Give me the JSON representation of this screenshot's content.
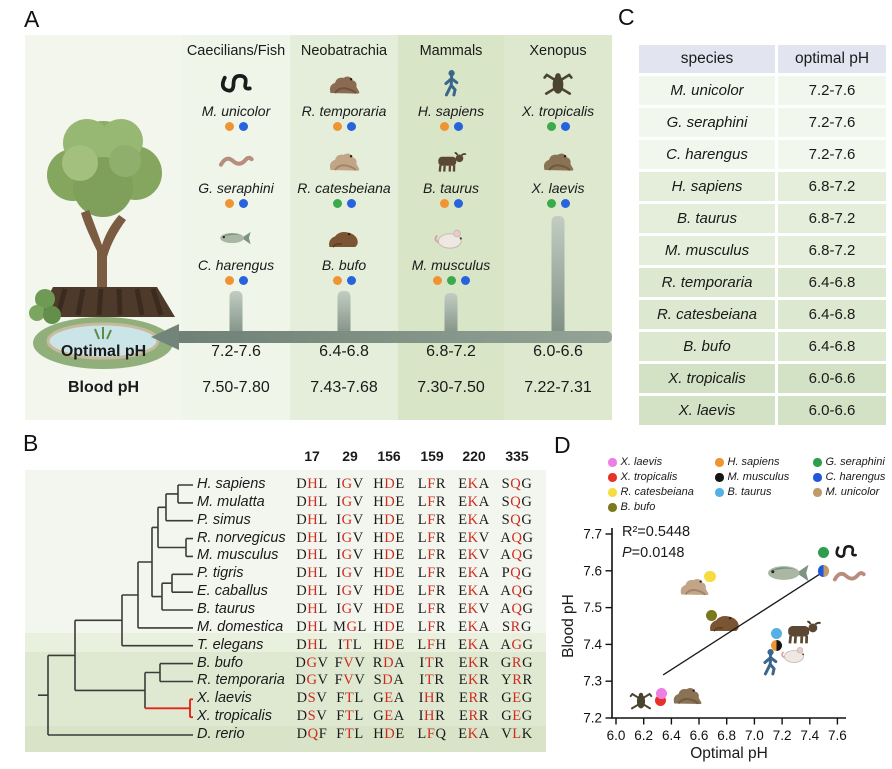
{
  "panels": {
    "a": "A",
    "b": "B",
    "c": "C",
    "d": "D"
  },
  "palette": {
    "orange": "#F09433",
    "green": "#3BAA4C",
    "blue": "#2763DD"
  },
  "panelA": {
    "row_labels": {
      "optimal": "Optimal pH",
      "blood": "Blood pH"
    },
    "columns": [
      {
        "name": "Caecilians/Fish",
        "bg": "#F0F5EA",
        "species": [
          {
            "name": "M. unicolor",
            "icon": "caecilian",
            "dots": [
              "orange",
              "blue"
            ]
          },
          {
            "name": "G. seraphini",
            "icon": "worm",
            "dots": [
              "orange",
              "blue"
            ]
          },
          {
            "name": "C. harengus",
            "icon": "fish",
            "dots": [
              "orange",
              "blue"
            ]
          }
        ],
        "optimal_ph": "7.2-7.6",
        "blood_ph": "7.50-7.80"
      },
      {
        "name": "Neobatrachia",
        "bg": "#E4EEDA",
        "species": [
          {
            "name": "R. temporaria",
            "icon": "frog-dark",
            "dots": [
              "orange",
              "blue"
            ]
          },
          {
            "name": "R. catesbeiana",
            "icon": "frog-light",
            "dots": [
              "green",
              "blue"
            ]
          },
          {
            "name": "B. bufo",
            "icon": "toad",
            "dots": [
              "orange",
              "blue"
            ]
          }
        ],
        "optimal_ph": "6.4-6.8",
        "blood_ph": "7.43-7.68"
      },
      {
        "name": "Mammals",
        "bg": "#D8E5C6",
        "species": [
          {
            "name": "H. sapiens",
            "icon": "human",
            "dots": [
              "orange",
              "blue"
            ]
          },
          {
            "name": "B. taurus",
            "icon": "cow",
            "dots": [
              "orange",
              "blue"
            ]
          },
          {
            "name": "M. musculus",
            "icon": "mouse",
            "dots": [
              "orange",
              "green",
              "blue"
            ]
          }
        ],
        "optimal_ph": "6.8-7.2",
        "blood_ph": "7.30-7.50"
      },
      {
        "name": "Xenopus",
        "bg": "#DDE8CF",
        "species": [
          {
            "name": "X. tropicalis",
            "icon": "xenopus-dark",
            "dots": [
              "green",
              "blue"
            ]
          },
          {
            "name": "X. laevis",
            "icon": "frog-xlaevis",
            "dots": [
              "green",
              "blue"
            ]
          }
        ],
        "optimal_ph": "6.0-6.6",
        "blood_ph": "7.22-7.31"
      }
    ]
  },
  "panelB": {
    "positions": [
      "17",
      "29",
      "156",
      "159",
      "220",
      "335"
    ],
    "rows": [
      {
        "species": "H. sapiens",
        "codons": [
          "DHL",
          "IGV",
          "HDE",
          "LFR",
          "EKA",
          "SQG"
        ]
      },
      {
        "species": "M. mulatta",
        "codons": [
          "DHL",
          "IGV",
          "HDE",
          "LFR",
          "EKA",
          "SQG"
        ]
      },
      {
        "species": "P. simus",
        "codons": [
          "DHL",
          "IGV",
          "HDE",
          "LFR",
          "EKA",
          "SQG"
        ]
      },
      {
        "species": "R. norvegicus",
        "codons": [
          "DHL",
          "IGV",
          "HDE",
          "LFR",
          "EKV",
          "AQG"
        ]
      },
      {
        "species": "M. musculus",
        "codons": [
          "DHL",
          "IGV",
          "HDE",
          "LFR",
          "EKV",
          "AQG"
        ]
      },
      {
        "species": "P. tigris",
        "codons": [
          "DHL",
          "IGV",
          "HDE",
          "LFR",
          "EKA",
          "PQG"
        ]
      },
      {
        "species": "E. caballus",
        "codons": [
          "DHL",
          "IGV",
          "HDE",
          "LFR",
          "EKA",
          "AQG"
        ]
      },
      {
        "species": "B. taurus",
        "codons": [
          "DHL",
          "IGV",
          "HDE",
          "LFR",
          "EKV",
          "AQG"
        ]
      },
      {
        "species": "M. domestica",
        "codons": [
          "DHL",
          "MGL",
          "HDE",
          "LFR",
          "EKA",
          "SRG"
        ]
      },
      {
        "species": "T. elegans",
        "codons": [
          "DHL",
          "ITL",
          "HDE",
          "LFH",
          "EKA",
          "AGG"
        ]
      },
      {
        "species": "B. bufo",
        "codons": [
          "DGV",
          "FVV",
          "RDA",
          "ITR",
          "EKR",
          "GRG"
        ]
      },
      {
        "species": "R. temporaria",
        "codons": [
          "DGV",
          "FVV",
          "SDA",
          "ITR",
          "EKR",
          "YRR"
        ]
      },
      {
        "species": "X. laevis",
        "codons": [
          "DSV",
          "FTL",
          "GEA",
          "IHR",
          "ERR",
          "GEG"
        ]
      },
      {
        "species": "X. tropicalis",
        "codons": [
          "DSV",
          "FTL",
          "GEA",
          "IHR",
          "ERR",
          "GEG"
        ]
      },
      {
        "species": "D. rerio",
        "codons": [
          "DQF",
          "FTL",
          "HDE",
          "LFQ",
          "EKA",
          "VLK"
        ]
      }
    ]
  },
  "panelC": {
    "headers": [
      "species",
      "optimal pH"
    ],
    "rows": [
      {
        "species": "M. unicolor",
        "ph": "7.2-7.6",
        "group": 0
      },
      {
        "species": "G. seraphini",
        "ph": "7.2-7.6",
        "group": 0
      },
      {
        "species": "C. harengus",
        "ph": "7.2-7.6",
        "group": 0
      },
      {
        "species": "H. sapiens",
        "ph": "6.8-7.2",
        "group": 1
      },
      {
        "species": "B. taurus",
        "ph": "6.8-7.2",
        "group": 1
      },
      {
        "species": "M. musculus",
        "ph": "6.8-7.2",
        "group": 1
      },
      {
        "species": "R. temporaria",
        "ph": "6.4-6.8",
        "group": 2
      },
      {
        "species": "R. catesbeiana",
        "ph": "6.4-6.8",
        "group": 2
      },
      {
        "species": "B. bufo",
        "ph": "6.4-6.8",
        "group": 2
      },
      {
        "species": "X. tropicalis",
        "ph": "6.0-6.6",
        "group": 3
      },
      {
        "species": "X. laevis",
        "ph": "6.0-6.6",
        "group": 3
      }
    ],
    "group_colors": [
      "#F2F7EE",
      "#E4EEDB",
      "#DCE8D0",
      "#D3E1C4"
    ]
  },
  "chart_data": {
    "type": "scatter",
    "xlabel": "Optimal pH",
    "ylabel": "Blood pH",
    "xlim": [
      6.0,
      7.6
    ],
    "ylim": [
      7.2,
      7.7
    ],
    "xticks": [
      "6.0",
      "6.2",
      "6.4",
      "6.6",
      "6.8",
      "7.0",
      "7.2",
      "7.4",
      "7.6"
    ],
    "yticks": [
      "7.2",
      "7.3",
      "7.4",
      "7.5",
      "7.6",
      "7.7"
    ],
    "grid": false,
    "legend_position": "top",
    "annotation": {
      "r2": "R²=0.5448",
      "p_var": "P",
      "p_rest": "=0.0148"
    },
    "regression_line": {
      "x1": 6.34,
      "y1": 7.317,
      "x2": 7.49,
      "y2": 7.595
    },
    "legend_columns": [
      [
        {
          "label": "X. laevis",
          "color": "#EC7FE3"
        },
        {
          "label": "X. tropicalis",
          "color": "#E8312A"
        },
        {
          "label": "R. catesbeiana",
          "color": "#F6DC41"
        },
        {
          "label": "B. bufo",
          "color": "#7B781D"
        }
      ],
      [
        {
          "label": "H. sapiens",
          "color": "#ED9433"
        },
        {
          "label": "M. musculus",
          "color": "#151515"
        },
        {
          "label": "B. taurus",
          "color": "#57B0E3"
        }
      ],
      [
        {
          "label": "G. seraphini",
          "color": "#2D9E4D"
        },
        {
          "label": "C. harengus",
          "color": "#2157DB"
        },
        {
          "label": "M. unicolor",
          "color": "#BE9A6C"
        }
      ]
    ],
    "points": [
      {
        "label": "X. tropicalis",
        "x": 6.32,
        "y": 7.248,
        "color": "#E8312A"
      },
      {
        "label": "X. laevis",
        "x": 6.33,
        "y": 7.267,
        "color": "#EC7FE3"
      },
      {
        "label": "R. catesbeiana",
        "x": 6.68,
        "y": 7.585,
        "color": "#F6DC41"
      },
      {
        "label": "B. bufo",
        "x": 6.69,
        "y": 7.478,
        "color": "#7B781D"
      },
      {
        "label": "B. taurus",
        "x": 7.16,
        "y": 7.43,
        "color": "#57B0E3"
      },
      {
        "label": "H. sapiens / M. musculus",
        "x": 7.16,
        "y": 7.397,
        "color": "#ED9433",
        "color2": "#151515"
      },
      {
        "label": "C. harengus / M. unicolor",
        "x": 7.5,
        "y": 7.6,
        "color": "#2157DB",
        "color2": "#BE9A6C"
      },
      {
        "label": "G. seraphini",
        "x": 7.5,
        "y": 7.65,
        "color": "#2D9E4D"
      }
    ],
    "decorations": [
      {
        "icon": "xenopus-dark",
        "x": 6.18,
        "y": 7.246,
        "size": 28
      },
      {
        "icon": "frog-xlaevis",
        "x": 6.51,
        "y": 7.263,
        "size": 34
      },
      {
        "icon": "frog-light",
        "x": 6.56,
        "y": 7.56,
        "size": 34
      },
      {
        "icon": "toad",
        "x": 6.79,
        "y": 7.46,
        "size": 36
      },
      {
        "icon": "cow",
        "x": 7.35,
        "y": 7.437,
        "size": 42
      },
      {
        "icon": "mouse",
        "x": 7.29,
        "y": 7.375,
        "size": 30
      },
      {
        "icon": "human",
        "x": 7.11,
        "y": 7.35,
        "size": 36
      },
      {
        "icon": "fish",
        "x": 7.25,
        "y": 7.595,
        "size": 48
      },
      {
        "icon": "worm",
        "x": 7.68,
        "y": 7.585,
        "size": 34
      },
      {
        "icon": "caecilian",
        "x": 7.66,
        "y": 7.651,
        "size": 26
      }
    ]
  }
}
